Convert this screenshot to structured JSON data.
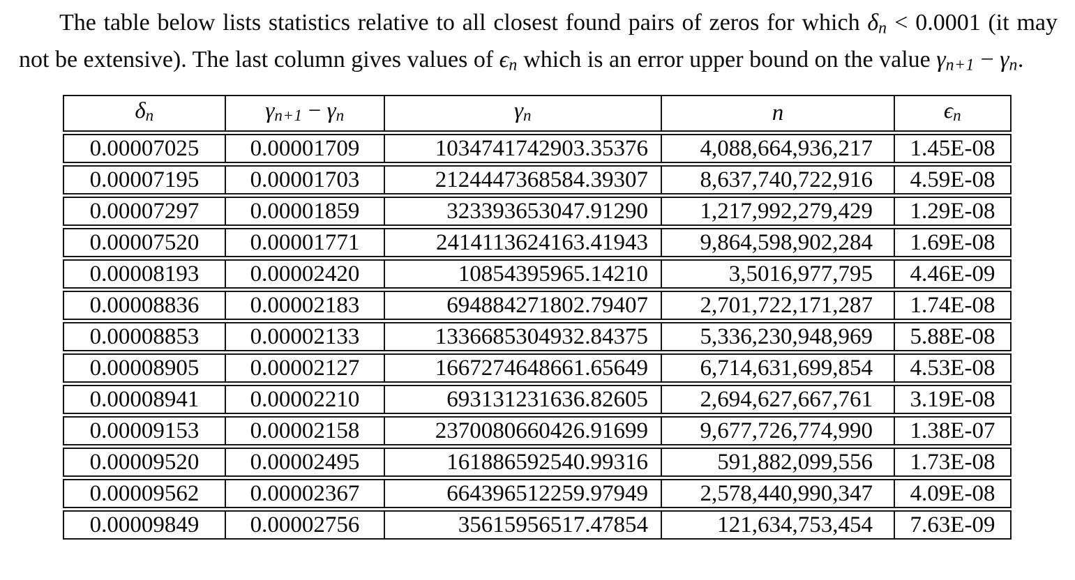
{
  "colors": {
    "background": "#ffffff",
    "text": "#0b0b0b",
    "table_border": "#141414"
  },
  "paragraph": {
    "segments": [
      {
        "t": "The table below lists statistics relative to all closest found pairs of zeros for which "
      },
      {
        "i": "δ"
      },
      {
        "sub": "n"
      },
      {
        "t": " < 0.0001 (it may not be extensive). The last column gives values of "
      },
      {
        "i": "ϵ"
      },
      {
        "sub": "n"
      },
      {
        "t": " which is an error upper bound on the value "
      },
      {
        "i": "γ"
      },
      {
        "sub": "n+1"
      },
      {
        "t": " − "
      },
      {
        "i": "γ"
      },
      {
        "sub": "n"
      },
      {
        "t": "."
      }
    ]
  },
  "table": {
    "columns": [
      {
        "key": "delta-n",
        "header": [
          {
            "i": "δ"
          },
          {
            "sub": "n"
          }
        ]
      },
      {
        "key": "gamma-gap",
        "header": [
          {
            "i": "γ"
          },
          {
            "sub": "n+1"
          },
          {
            "t": " − "
          },
          {
            "i": "γ"
          },
          {
            "sub": "n"
          }
        ]
      },
      {
        "key": "gamma-n",
        "header": [
          {
            "i": "γ"
          },
          {
            "sub": "n"
          }
        ]
      },
      {
        "key": "n",
        "header": [
          {
            "i": "n"
          }
        ]
      },
      {
        "key": "epsilon-n",
        "header": [
          {
            "i": "ϵ"
          },
          {
            "sub": "n"
          }
        ]
      }
    ],
    "rows": [
      [
        "0.00007025",
        "0.00001709",
        "1034741742903.35376",
        "4,088,664,936,217",
        "1.45E-08"
      ],
      [
        "0.00007195",
        "0.00001703",
        "2124447368584.39307",
        "8,637,740,722,916",
        "4.59E-08"
      ],
      [
        "0.00007297",
        "0.00001859",
        "323393653047.91290",
        "1,217,992,279,429",
        "1.29E-08"
      ],
      [
        "0.00007520",
        "0.00001771",
        "2414113624163.41943",
        "9,864,598,902,284",
        "1.69E-08"
      ],
      [
        "0.00008193",
        "0.00002420",
        "10854395965.14210",
        "3,5016,977,795",
        "4.46E-09"
      ],
      [
        "0.00008836",
        "0.00002183",
        "694884271802.79407",
        "2,701,722,171,287",
        "1.74E-08"
      ],
      [
        "0.00008853",
        "0.00002133",
        "1336685304932.84375",
        "5,336,230,948,969",
        "5.88E-08"
      ],
      [
        "0.00008905",
        "0.00002127",
        "1667274648661.65649",
        "6,714,631,699,854",
        "4.53E-08"
      ],
      [
        "0.00008941",
        "0.00002210",
        "693131231636.82605",
        "2,694,627,667,761",
        "3.19E-08"
      ],
      [
        "0.00009153",
        "0.00002158",
        "2370080660426.91699",
        "9,677,726,774,990",
        "1.38E-07"
      ],
      [
        "0.00009520",
        "0.00002495",
        "161886592540.99316",
        "591,882,099,556",
        "1.73E-08"
      ],
      [
        "0.00009562",
        "0.00002367",
        "664396512259.97949",
        "2,578,440,990,347",
        "4.09E-08"
      ],
      [
        "0.00009849",
        "0.00002756",
        "35615956517.47854",
        "121,634,753,454",
        "7.63E-09"
      ]
    ]
  }
}
